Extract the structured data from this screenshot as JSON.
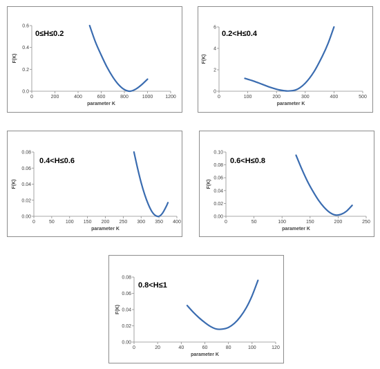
{
  "style": {
    "line_color": "#3a6cb0",
    "axis_color": "#8c8c8c",
    "text_color": "#404040"
  },
  "chart_data": [
    {
      "type": "line",
      "title": "0≤H≤0.2",
      "xlabel": "parameter K",
      "ylabel": "F(K)",
      "xlim": [
        0,
        1200
      ],
      "ylim": [
        0,
        0.6
      ],
      "xticks": [
        0,
        200,
        400,
        600,
        800,
        1000,
        1200
      ],
      "yticks": [
        0.0,
        0.2,
        0.4,
        0.6
      ],
      "xtick_labels": [
        "0",
        "200",
        "400",
        "600",
        "800",
        "1000",
        "1200"
      ],
      "ytick_labels": [
        "0.0",
        "0.2",
        "0.4",
        "0.6"
      ],
      "x": [
        500,
        550,
        600,
        650,
        700,
        750,
        800,
        850,
        900,
        950,
        1000
      ],
      "y": [
        0.6,
        0.45,
        0.33,
        0.22,
        0.13,
        0.06,
        0.015,
        0.0,
        0.02,
        0.06,
        0.11
      ]
    },
    {
      "type": "line",
      "title": "0.2<H≤0.4",
      "xlabel": "parameter K",
      "ylabel": "F(K)",
      "xlim": [
        0,
        500
      ],
      "ylim": [
        0,
        6
      ],
      "xticks": [
        0,
        100,
        200,
        300,
        400,
        500
      ],
      "yticks": [
        0,
        2,
        4,
        6
      ],
      "xtick_labels": [
        "0",
        "100",
        "200",
        "300",
        "400",
        "500"
      ],
      "ytick_labels": [
        "0",
        "2",
        "4",
        "6"
      ],
      "x": [
        90,
        120,
        150,
        180,
        210,
        240,
        270,
        300,
        330,
        360,
        380,
        400
      ],
      "y": [
        1.2,
        0.95,
        0.65,
        0.35,
        0.12,
        0.02,
        0.15,
        0.75,
        1.8,
        3.3,
        4.5,
        6.0
      ]
    },
    {
      "type": "line",
      "title": "0.4<H≤0.6",
      "xlabel": "parameter K",
      "ylabel": "F(K)",
      "xlim": [
        0,
        400
      ],
      "ylim": [
        0,
        0.08
      ],
      "xticks": [
        0,
        50,
        100,
        150,
        200,
        250,
        300,
        350,
        400
      ],
      "yticks": [
        0.0,
        0.02,
        0.04,
        0.06,
        0.08
      ],
      "xtick_labels": [
        "0",
        "50",
        "100",
        "150",
        "200",
        "250",
        "300",
        "350",
        "400"
      ],
      "ytick_labels": [
        "0.00",
        "0.02",
        "0.04",
        "0.06",
        "0.08"
      ],
      "x": [
        280,
        290,
        300,
        310,
        320,
        330,
        340,
        350,
        360,
        370,
        375
      ],
      "y": [
        0.08,
        0.06,
        0.042,
        0.027,
        0.015,
        0.006,
        0.001,
        0.0,
        0.004,
        0.012,
        0.017
      ]
    },
    {
      "type": "line",
      "title": "0.6<H≤0.8",
      "xlabel": "parameter K",
      "ylabel": "F(K)",
      "xlim": [
        0,
        250
      ],
      "ylim": [
        0,
        0.1
      ],
      "xticks": [
        0,
        50,
        100,
        150,
        200,
        250
      ],
      "yticks": [
        0.0,
        0.02,
        0.04,
        0.06,
        0.08,
        0.1
      ],
      "xtick_labels": [
        "0",
        "50",
        "100",
        "150",
        "200",
        "250"
      ],
      "ytick_labels": [
        "0.00",
        "0.02",
        "0.04",
        "0.06",
        "0.08",
        "0.10"
      ],
      "x": [
        125,
        135,
        145,
        155,
        165,
        175,
        185,
        195,
        205,
        215,
        225
      ],
      "y": [
        0.095,
        0.074,
        0.055,
        0.039,
        0.025,
        0.014,
        0.006,
        0.002,
        0.003,
        0.008,
        0.017
      ]
    },
    {
      "type": "line",
      "title": "0.8<H≤1",
      "xlabel": "parameter K",
      "ylabel": "F(K)",
      "xlim": [
        0,
        120
      ],
      "ylim": [
        0,
        0.08
      ],
      "xticks": [
        0,
        20,
        40,
        60,
        80,
        100,
        120
      ],
      "yticks": [
        0.0,
        0.02,
        0.04,
        0.06,
        0.08
      ],
      "xtick_labels": [
        "0",
        "20",
        "40",
        "60",
        "80",
        "100",
        "120"
      ],
      "ytick_labels": [
        "0.00",
        "0.02",
        "0.04",
        "0.06",
        "0.08"
      ],
      "x": [
        45,
        50,
        55,
        60,
        65,
        70,
        75,
        80,
        85,
        90,
        95,
        100,
        105
      ],
      "y": [
        0.045,
        0.037,
        0.03,
        0.024,
        0.019,
        0.016,
        0.016,
        0.018,
        0.023,
        0.031,
        0.042,
        0.057,
        0.076
      ]
    }
  ]
}
